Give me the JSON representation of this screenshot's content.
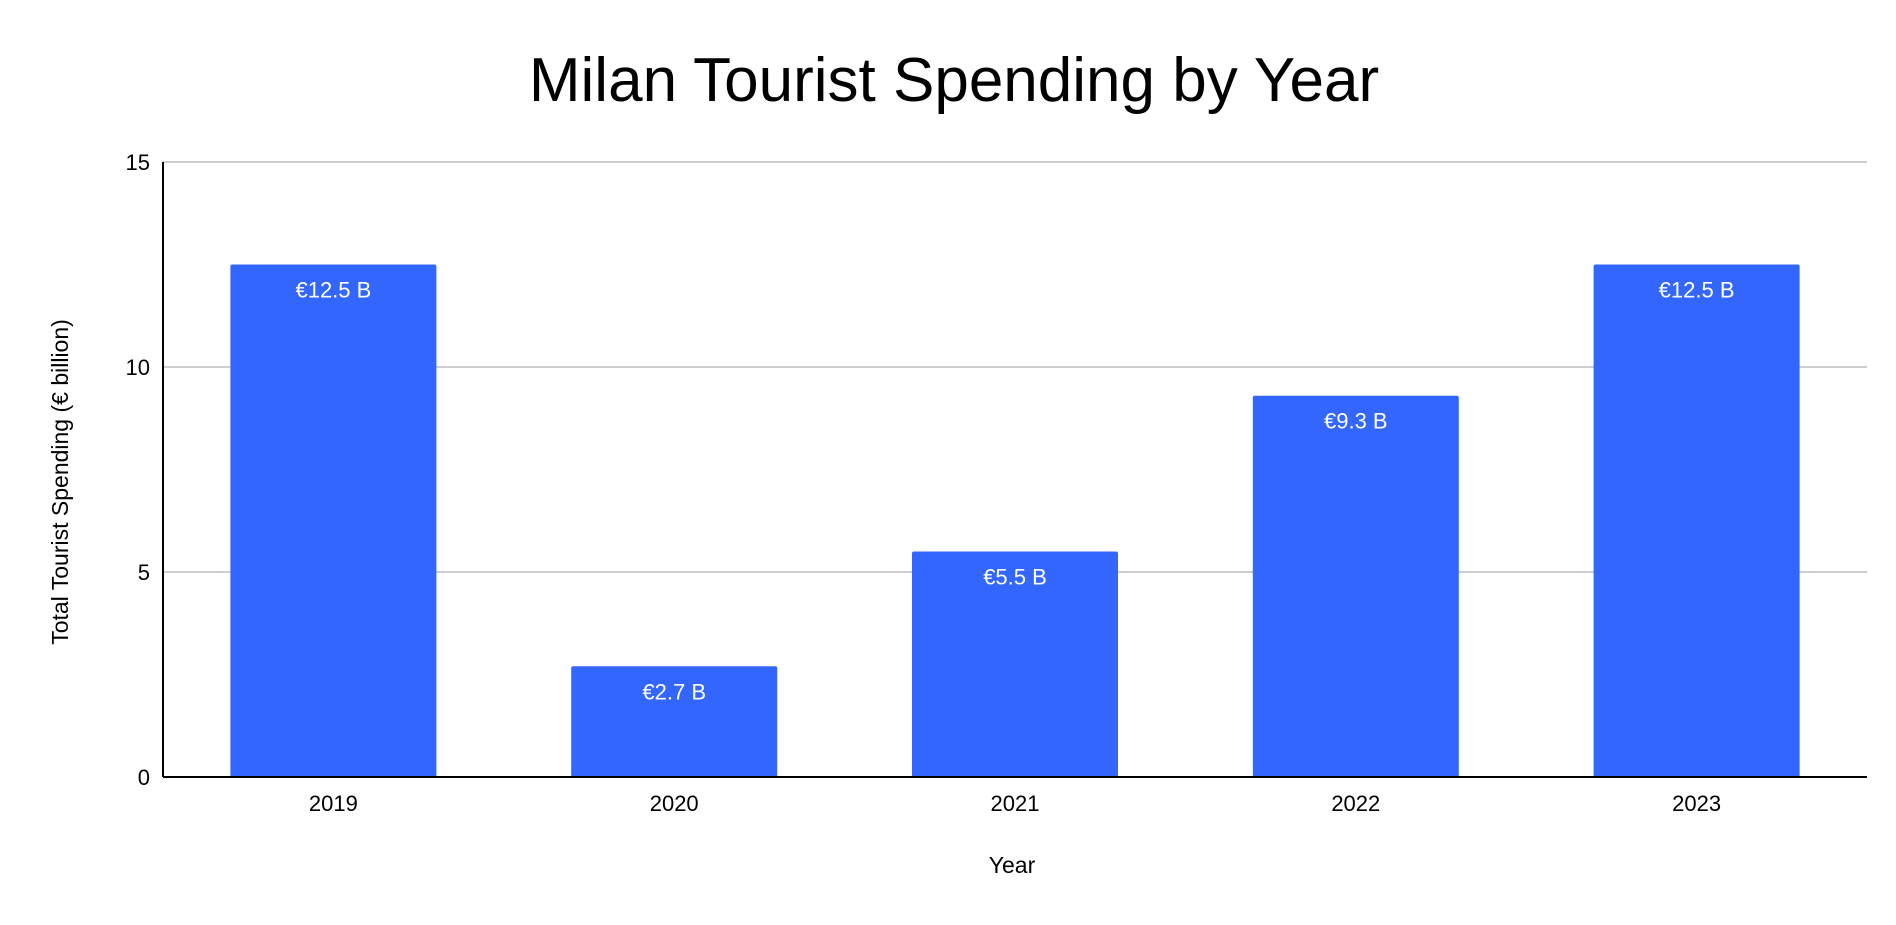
{
  "chart_data": {
    "type": "bar",
    "title": "Milan Tourist Spending by Year",
    "xlabel": "Year",
    "ylabel": "Total Tourist Spending (€ billion)",
    "categories": [
      "2019",
      "2020",
      "2021",
      "2022",
      "2023"
    ],
    "values": [
      12.5,
      2.7,
      5.5,
      9.3,
      12.5
    ],
    "data_labels": [
      "€12.5 B",
      "€2.7 B",
      "€5.5 B",
      "€9.3 B",
      "€12.5 B"
    ],
    "ylim": [
      0,
      15
    ],
    "yticks": [
      0,
      5,
      10,
      15
    ],
    "grid": true,
    "legend": "none",
    "bar_color": "#3366ff"
  }
}
